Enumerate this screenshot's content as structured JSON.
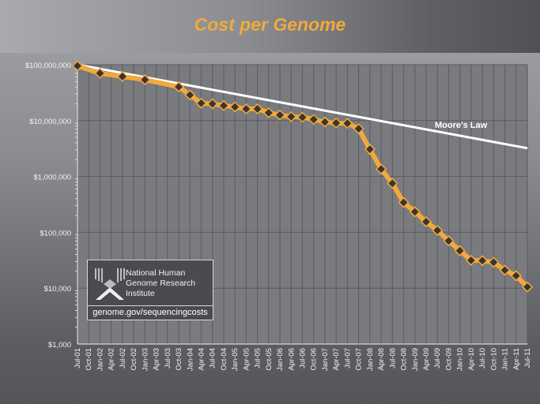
{
  "chart_data": {
    "type": "line",
    "title": "Cost per Genome",
    "xlabel": "",
    "ylabel": "",
    "y_scale": "log",
    "ylim": [
      1000,
      100000000
    ],
    "y_tick_labels": [
      "$100,000,000",
      "$10,000,000",
      "$1,000,000",
      "$100,000",
      "$10,000",
      "$1,000"
    ],
    "y_ticks": [
      100000000,
      10000000,
      1000000,
      100000,
      10000,
      1000
    ],
    "categories": [
      "Jul-01",
      "Oct-01",
      "Jan-02",
      "Apr-02",
      "Jul-02",
      "Oct-02",
      "Jan-03",
      "Apr-03",
      "Jul-03",
      "Oct-03",
      "Jan-04",
      "Apr-04",
      "Jul-04",
      "Oct-04",
      "Jan-05",
      "Apr-05",
      "Jul-05",
      "Oct-05",
      "Jan-06",
      "Apr-06",
      "Jul-06",
      "Oct-06",
      "Jan-07",
      "Apr-07",
      "Jul-07",
      "Oct-07",
      "Jan-08",
      "Apr-08",
      "Jul-08",
      "Oct-08",
      "Jan-09",
      "Apr-09",
      "Jul-09",
      "Oct-09",
      "Jan-10",
      "Apr-10",
      "Jul-10",
      "Oct-10",
      "Jan-11",
      "Apr-11",
      "Jul-11"
    ],
    "grid": true,
    "series": [
      {
        "name": "",
        "color": "#f2a93b",
        "marker": "diamond",
        "points": [
          [
            "Jul-01",
            95263072
          ],
          [
            "Jan-02",
            70175437
          ],
          [
            "Jul-02",
            61448422
          ],
          [
            "Jan-03",
            53751684
          ],
          [
            "Oct-03",
            40157554
          ],
          [
            "Jan-04",
            28780376
          ],
          [
            "Apr-04",
            20442576
          ],
          [
            "Jul-04",
            19934346
          ],
          [
            "Oct-04",
            18519312
          ],
          [
            "Jan-05",
            17534970
          ],
          [
            "Apr-05",
            16159699
          ],
          [
            "Jul-05",
            16180224
          ],
          [
            "Oct-05",
            13801124
          ],
          [
            "Jan-06",
            12585659
          ],
          [
            "Apr-06",
            11732535
          ],
          [
            "Jul-06",
            11455315
          ],
          [
            "Oct-06",
            10474556
          ],
          [
            "Jan-07",
            9408739
          ],
          [
            "Apr-07",
            9047003
          ],
          [
            "Jul-07",
            8927342
          ],
          [
            "Oct-07",
            7147571
          ],
          [
            "Jan-08",
            3063820
          ],
          [
            "Apr-08",
            1352982
          ],
          [
            "Jul-08",
            752080
          ],
          [
            "Oct-08",
            342502
          ],
          [
            "Jan-09",
            232735
          ],
          [
            "Apr-09",
            154714
          ],
          [
            "Jul-09",
            108065
          ],
          [
            "Oct-09",
            70333
          ],
          [
            "Jan-10",
            46774
          ],
          [
            "Apr-10",
            31512
          ],
          [
            "Jul-10",
            31125
          ],
          [
            "Oct-10",
            29092
          ],
          [
            "Jan-11",
            20963
          ],
          [
            "Apr-11",
            16712
          ],
          [
            "Jul-11",
            10497
          ]
        ]
      },
      {
        "name": "Moore's Law",
        "color": "#ffffff",
        "points": [
          [
            "Jul-01",
            100000000
          ],
          [
            "Jul-11",
            3200000
          ]
        ]
      }
    ]
  },
  "logo": {
    "lines": [
      "National Human",
      "Genome Research",
      "Institute"
    ],
    "url": "genome.gov/sequencingcosts"
  }
}
